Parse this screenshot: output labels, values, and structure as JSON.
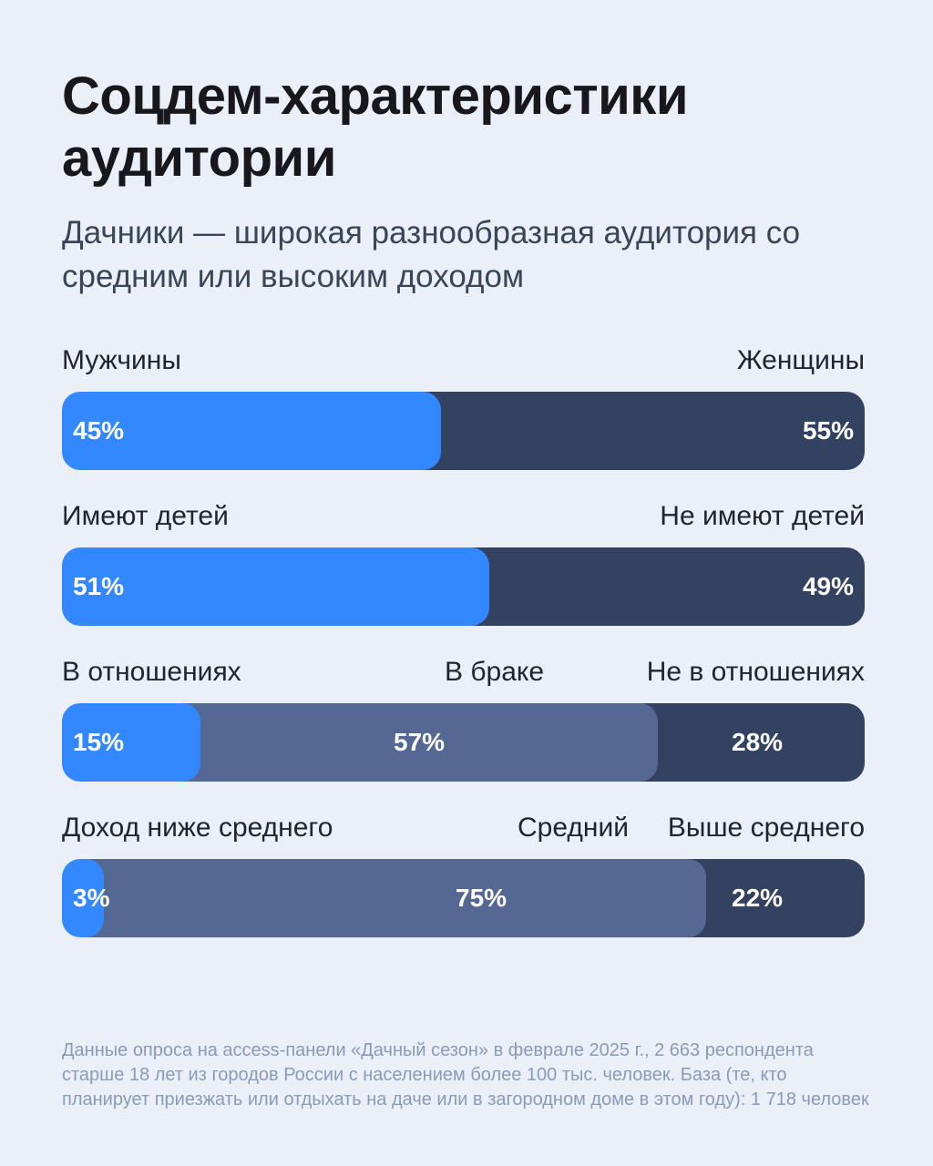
{
  "title": "Соцдем-характеристики аудитории",
  "subtitle": "Дачники — широкая разнообразная аудитория со средним или высоким доходом",
  "note": "Данные опроса на access-панели «Дачный сезон» в феврале 2025 г., 2 663 респондента старше 18 лет из городов России с населением более 100 тыс. человек. База (те, кто планирует приезжать или отдыхать на даче или в загородном доме в этом году): 1 718 человек",
  "colors": {
    "bright_blue": "#3388ff",
    "mid_slate": "#556894",
    "dark_navy": "#344262",
    "background": "#ebeff7"
  },
  "chart_data": {
    "type": "bar",
    "orientation": "horizontal-stacked-100",
    "rows": [
      {
        "segments": [
          {
            "label": "Мужчины",
            "value": 45,
            "display": "45%",
            "color": "#3388ff"
          },
          {
            "label": "Женщины",
            "value": 55,
            "display": "55%",
            "color": "#344262"
          }
        ]
      },
      {
        "segments": [
          {
            "label": "Имеют детей",
            "value": 51,
            "display": "51%",
            "color": "#3388ff"
          },
          {
            "label": "Не имеют детей",
            "value": 49,
            "display": "49%",
            "color": "#344262"
          }
        ]
      },
      {
        "segments": [
          {
            "label": "В отношениях",
            "value": 15,
            "display": "15%",
            "color": "#3388ff"
          },
          {
            "label": "В браке",
            "value": 57,
            "display": "57%",
            "color": "#556894"
          },
          {
            "label": "Не в отношениях",
            "value": 28,
            "display": "28%",
            "color": "#344262"
          }
        ]
      },
      {
        "segments": [
          {
            "label": "Доход ниже среднего",
            "value": 3,
            "display": "3%",
            "color": "#3388ff"
          },
          {
            "label": "Средний",
            "value": 75,
            "display": "75%",
            "color": "#556894"
          },
          {
            "label": "Выше среднего",
            "value": 22,
            "display": "22%",
            "color": "#344262"
          }
        ]
      }
    ]
  }
}
